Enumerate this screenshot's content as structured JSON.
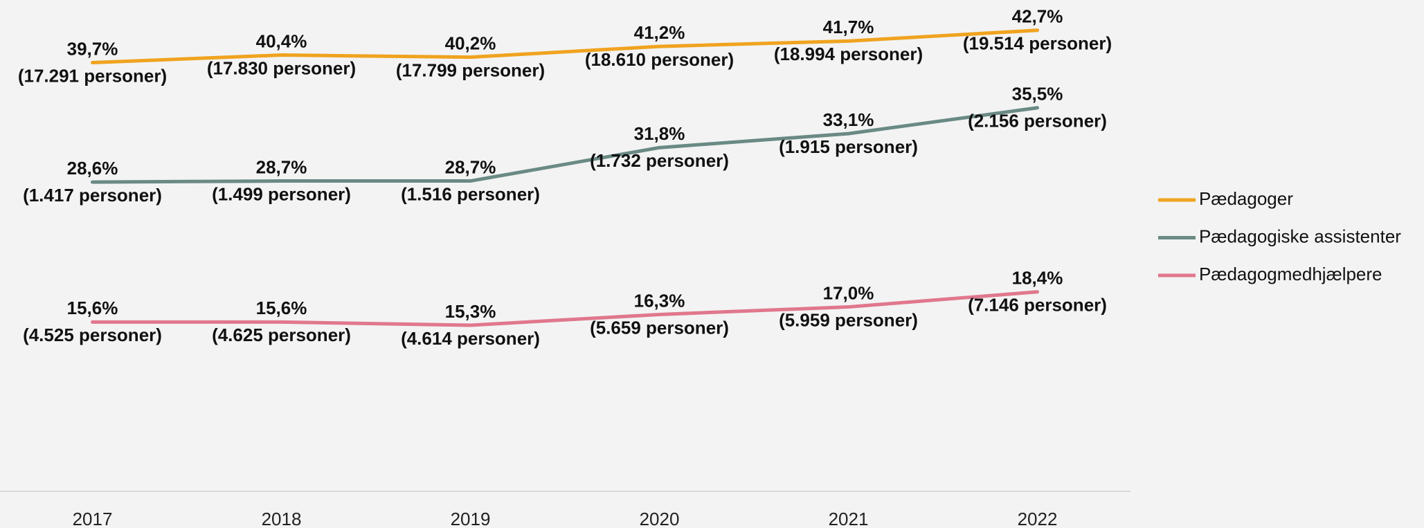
{
  "chart_data": {
    "type": "line",
    "categories": [
      "2017",
      "2018",
      "2019",
      "2020",
      "2021",
      "2022"
    ],
    "ylim": [
      0,
      45
    ],
    "legend": "right",
    "series": [
      {
        "name": "Pædagoger",
        "color": "#f0a31f",
        "values": [
          39.7,
          40.4,
          40.2,
          41.2,
          41.7,
          42.7
        ],
        "value_labels": [
          "39,7%",
          "40,4%",
          "40,2%",
          "41,2%",
          "41,7%",
          "42,7%"
        ],
        "persons_labels": [
          "(17.291 personer)",
          "(17.830 personer)",
          "(17.799 personer)",
          "(18.610 personer)",
          "(18.994 personer)",
          "(19.514 personer)"
        ]
      },
      {
        "name": "Pædagogiske assistenter",
        "color": "#6a8a84",
        "values": [
          28.6,
          28.7,
          28.7,
          31.8,
          33.1,
          35.5
        ],
        "value_labels": [
          "28,6%",
          "28,7%",
          "28,7%",
          "31,8%",
          "33,1%",
          "35,5%"
        ],
        "persons_labels": [
          "(1.417 personer)",
          "(1.499 personer)",
          "(1.516 personer)",
          "(1.732 personer)",
          "(1.915 personer)",
          "(2.156 personer)"
        ]
      },
      {
        "name": "Pædagogmedhjælpere",
        "color": "#e0778d",
        "values": [
          15.6,
          15.6,
          15.3,
          16.3,
          17.0,
          18.4
        ],
        "value_labels": [
          "15,6%",
          "15,6%",
          "15,3%",
          "16,3%",
          "17,0%",
          "18,4%"
        ],
        "persons_labels": [
          "(4.525 personer)",
          "(4.625 personer)",
          "(4.614 personer)",
          "(5.659 personer)",
          "(5.959 personer)",
          "(7.146 personer)"
        ]
      }
    ]
  }
}
